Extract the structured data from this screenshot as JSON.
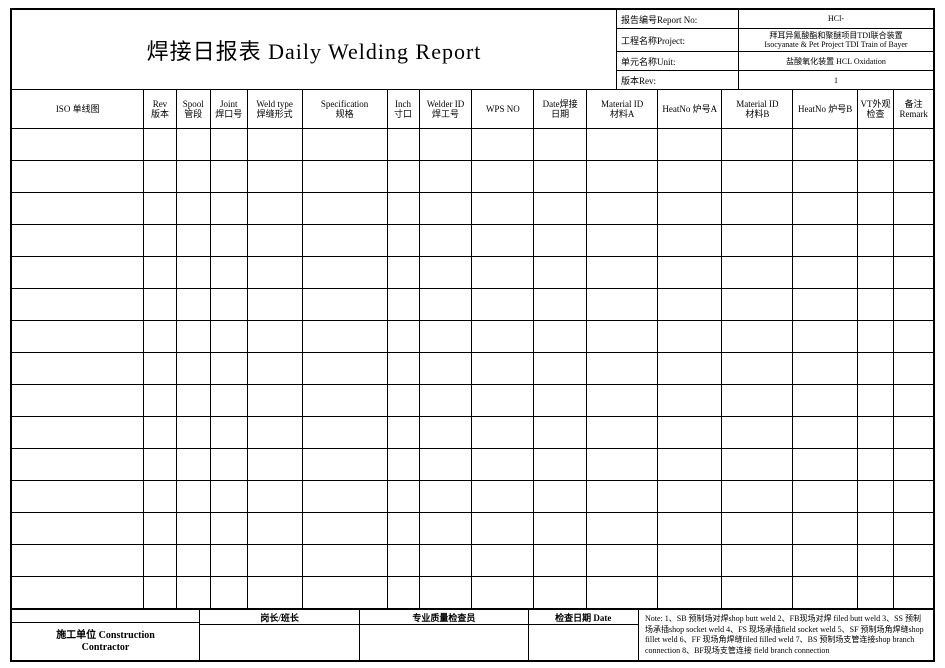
{
  "title": "焊接日报表  Daily Welding Report",
  "meta": {
    "report_no_label": "报告编号Report No:",
    "report_no_value": "HCl-",
    "project_label": "工程名称Project:",
    "project_value": "拜耳异氰酸酯和聚醚项目TDI联合装置\nIsocyanate & Pet Project TDI Train of Bayer",
    "unit_label": "单元名称Unit:",
    "unit_value": "盐酸氧化装置 HCL Oxidation",
    "rev_label": "版本Rev:",
    "rev_value": "1"
  },
  "columns": [
    {
      "key": "iso",
      "label": "ISO 单线图",
      "width": 115
    },
    {
      "key": "rev",
      "label": "Rev\n版本",
      "width": 28
    },
    {
      "key": "spool",
      "label": "Spool\n管段",
      "width": 30
    },
    {
      "key": "joint",
      "label": "Joint\n焊口号",
      "width": 32
    },
    {
      "key": "weldtype",
      "label": "Weld type\n焊缝形式",
      "width": 48
    },
    {
      "key": "spec",
      "label": "Specification\n规格",
      "width": 74
    },
    {
      "key": "inch",
      "label": "Inch\n寸口",
      "width": 28
    },
    {
      "key": "welder",
      "label": "Welder ID\n焊工号",
      "width": 46
    },
    {
      "key": "wps",
      "label": "WPS NO",
      "width": 54
    },
    {
      "key": "date",
      "label": "Date焊接\n日期",
      "width": 46
    },
    {
      "key": "matA",
      "label": "Material ID\n材料A",
      "width": 62
    },
    {
      "key": "heatA",
      "label": "HeatNo 炉号A",
      "width": 56
    },
    {
      "key": "matB",
      "label": "Material ID\n材料B",
      "width": 62
    },
    {
      "key": "heatB",
      "label": "HeatNo 炉号B",
      "width": 56
    },
    {
      "key": "vt",
      "label": "VT外观\n检查",
      "width": 32
    },
    {
      "key": "remark",
      "label": "备注\nRemark",
      "width": 34
    }
  ],
  "data_rows": 15,
  "footer": {
    "contractor_label": "施工单位 Construction\nContractor",
    "sig1": "岗长/班长",
    "sig2": "专业质量检查员",
    "sig3": "检查日期 Date",
    "note": "Note: 1、SB 预制场对焊shop butt weld 2、FB现场对焊 filed butt weld 3、SS 预制场承插shop socket weld 4、FS 现场承插field socket weld 5、SF 预制场角焊缝shop fillet weld 6、FF 现场角焊缝filed filled weld 7、BS 预制场支管连接shop branch connection 8、BF现场支管连接 field branch connection"
  },
  "style": {
    "border_color": "#000000",
    "background": "#ffffff",
    "title_fontsize": 22,
    "header_fontsize": 9,
    "meta_fontsize": 9,
    "note_fontsize": 8
  }
}
